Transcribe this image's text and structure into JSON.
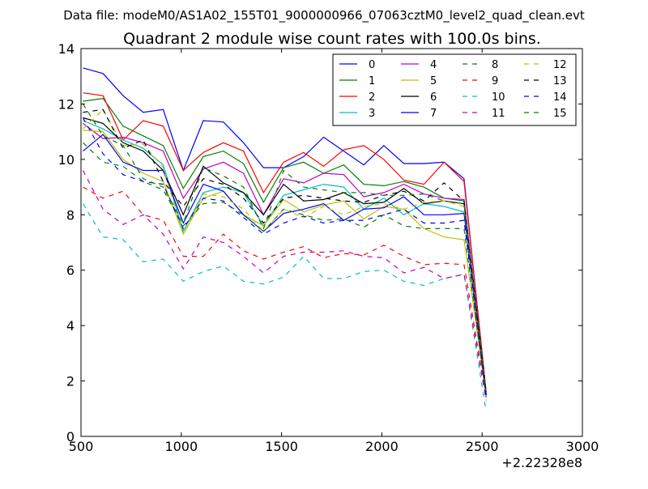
{
  "suptitle": "Data file: modeM0/AS1A02_155T01_9000000966_07063cztM0_level2_quad_clean.evt",
  "chart_data": {
    "type": "line",
    "title": "Quadrant 2 module wise count rates with 100.0s bins.",
    "xlabel": "",
    "ylabel": "",
    "x_offset_label": "+2.22328e8",
    "xlim": [
      500,
      3000
    ],
    "ylim": [
      0,
      14
    ],
    "xticks": [
      500,
      1000,
      1500,
      2000,
      2500,
      3000
    ],
    "yticks": [
      0,
      2,
      4,
      6,
      8,
      10,
      12,
      14
    ],
    "grid": false,
    "legend_position": "top-right",
    "legend_columns": 4,
    "x": [
      510,
      610,
      710,
      810,
      910,
      1010,
      1110,
      1210,
      1310,
      1410,
      1510,
      1610,
      1710,
      1810,
      1910,
      2010,
      2110,
      2210,
      2310,
      2410,
      2520
    ],
    "series": [
      {
        "name": "0",
        "color": "#0000ff",
        "dash": "solid",
        "values": [
          13.3,
          13.1,
          12.3,
          11.7,
          11.8,
          9.6,
          11.4,
          11.35,
          10.6,
          9.7,
          9.7,
          10.1,
          10.8,
          10.3,
          9.8,
          10.5,
          9.85,
          9.85,
          9.9,
          9.3,
          1.6
        ]
      },
      {
        "name": "1",
        "color": "#008000",
        "dash": "solid",
        "values": [
          12.1,
          12.2,
          11.2,
          10.85,
          10.5,
          8.95,
          10.1,
          10.3,
          9.85,
          8.45,
          9.7,
          9.9,
          9.5,
          9.8,
          9.1,
          9.05,
          9.2,
          9.0,
          8.6,
          8.5,
          1.5
        ]
      },
      {
        "name": "2",
        "color": "#ff0000",
        "dash": "solid",
        "values": [
          12.4,
          12.3,
          10.7,
          11.4,
          11.2,
          9.6,
          10.25,
          10.6,
          10.3,
          8.8,
          9.9,
          10.25,
          9.75,
          10.35,
          10.5,
          10.0,
          9.25,
          9.1,
          9.9,
          9.2,
          1.6
        ]
      },
      {
        "name": "3",
        "color": "#00bfbf",
        "dash": "solid",
        "values": [
          11.4,
          11.1,
          10.7,
          10.4,
          9.8,
          7.4,
          8.8,
          9.0,
          8.8,
          7.6,
          8.7,
          8.9,
          9.1,
          9.0,
          8.2,
          8.6,
          8.0,
          8.4,
          8.3,
          8.1,
          1.5
        ]
      },
      {
        "name": "4",
        "color": "#bf00bf",
        "dash": "solid",
        "values": [
          11.3,
          10.75,
          10.8,
          10.6,
          10.3,
          8.6,
          9.65,
          9.9,
          9.5,
          8.0,
          9.3,
          9.15,
          9.5,
          9.45,
          8.65,
          8.8,
          9.1,
          8.75,
          8.6,
          8.55,
          1.5
        ]
      },
      {
        "name": "5",
        "color": "#bfbf00",
        "dash": "solid",
        "values": [
          11.05,
          11.0,
          10.0,
          9.5,
          9.2,
          7.3,
          8.6,
          8.85,
          8.0,
          7.6,
          8.55,
          8.1,
          8.35,
          8.5,
          7.85,
          8.3,
          8.2,
          7.5,
          7.2,
          7.1,
          1.5
        ]
      },
      {
        "name": "6",
        "color": "#000000",
        "dash": "solid",
        "values": [
          11.5,
          11.3,
          10.6,
          10.3,
          9.6,
          8.0,
          9.75,
          9.15,
          8.8,
          8.0,
          9.1,
          8.5,
          8.55,
          8.8,
          8.4,
          8.45,
          8.95,
          8.4,
          8.5,
          8.4,
          1.5
        ]
      },
      {
        "name": "7",
        "color": "#0000ff",
        "dash": "solid",
        "values": [
          10.3,
          10.9,
          9.9,
          9.6,
          9.6,
          7.7,
          9.1,
          8.85,
          8.0,
          7.4,
          8.05,
          8.2,
          8.4,
          7.8,
          8.2,
          8.25,
          8.65,
          8.0,
          8.0,
          8.05,
          1.5
        ]
      },
      {
        "name": "8",
        "color": "#008000",
        "dash": "dashed",
        "values": [
          10.6,
          9.9,
          9.75,
          9.2,
          8.9,
          7.6,
          8.4,
          8.45,
          8.0,
          7.4,
          8.2,
          8.0,
          7.8,
          7.85,
          7.55,
          8.0,
          7.6,
          7.5,
          7.5,
          7.5,
          1.4
        ]
      },
      {
        "name": "9",
        "color": "#ff0000",
        "dash": "dashed",
        "values": [
          9.0,
          8.6,
          8.85,
          8.0,
          7.8,
          6.5,
          6.5,
          7.3,
          6.7,
          6.4,
          6.65,
          6.85,
          6.45,
          6.6,
          6.55,
          6.9,
          6.5,
          6.2,
          6.25,
          6.2,
          1.4
        ]
      },
      {
        "name": "10",
        "color": "#00bfbf",
        "dash": "dashed",
        "values": [
          8.4,
          7.2,
          7.1,
          6.3,
          6.4,
          5.6,
          5.95,
          6.15,
          5.6,
          5.5,
          5.75,
          6.5,
          5.7,
          5.7,
          5.95,
          6.0,
          5.6,
          5.45,
          5.7,
          5.85,
          0.9
        ]
      },
      {
        "name": "11",
        "color": "#bf00bf",
        "dash": "dashed",
        "values": [
          9.6,
          8.2,
          7.65,
          8.0,
          7.3,
          6.05,
          7.2,
          7.0,
          6.5,
          5.9,
          6.5,
          6.65,
          6.65,
          6.7,
          6.5,
          6.45,
          5.9,
          6.1,
          5.7,
          5.85,
          1.3
        ]
      },
      {
        "name": "12",
        "color": "#bfbf00",
        "dash": "dashed",
        "values": [
          11.1,
          11.8,
          10.5,
          10.55,
          9.7,
          7.3,
          8.75,
          8.65,
          8.2,
          7.4,
          8.2,
          7.9,
          8.3,
          8.0,
          8.3,
          8.4,
          8.2,
          8.45,
          8.5,
          8.3,
          1.5
        ]
      },
      {
        "name": "13",
        "color": "#000000",
        "dash": "dashed",
        "values": [
          11.7,
          11.8,
          10.4,
          10.7,
          9.2,
          8.3,
          9.3,
          9.1,
          8.6,
          7.7,
          8.6,
          8.7,
          8.6,
          8.5,
          8.45,
          8.7,
          8.85,
          8.5,
          9.15,
          8.5,
          1.5
        ]
      },
      {
        "name": "14",
        "color": "#0000ff",
        "dash": "dashed",
        "values": [
          11.5,
          10.2,
          9.45,
          9.2,
          9.1,
          7.5,
          8.6,
          8.5,
          7.9,
          7.3,
          7.7,
          7.95,
          7.7,
          7.8,
          7.8,
          8.0,
          8.2,
          7.7,
          7.7,
          7.8,
          1.4
        ]
      },
      {
        "name": "15",
        "color": "#008000",
        "dash": "dashed",
        "values": [
          12.0,
          10.85,
          10.5,
          9.3,
          9.0,
          7.7,
          9.7,
          9.4,
          9.0,
          7.5,
          9.6,
          9.0,
          8.9,
          8.8,
          8.8,
          8.7,
          8.7,
          8.75,
          8.5,
          8.4,
          1.6
        ]
      }
    ]
  }
}
